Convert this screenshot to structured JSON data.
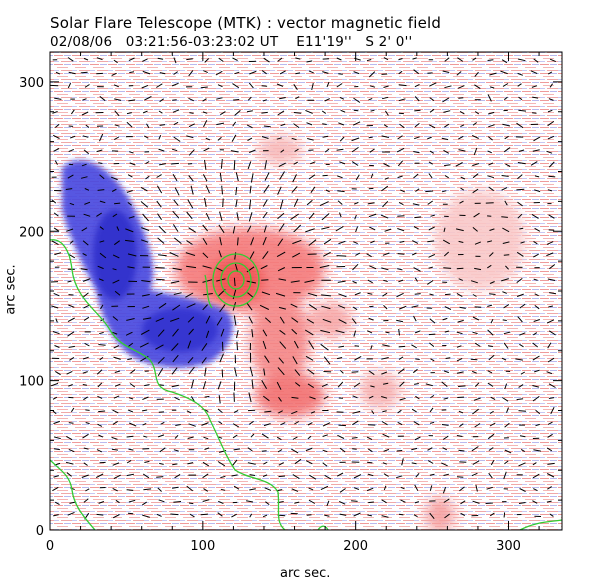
{
  "header": {
    "title": "Solar Flare Telescope (MTK) : vector magnetic field",
    "date": "02/08/06",
    "time_range": "03:21:56-03:23:02 UT",
    "lon": "E11'19''",
    "lat": "S 2' 0''"
  },
  "axes": {
    "xlabel": "arc sec.",
    "ylabel": "arc sec.",
    "xlim": [
      0,
      335
    ],
    "ylim": [
      0,
      320
    ],
    "xticks": [
      0,
      100,
      200,
      300
    ],
    "yticks": [
      0,
      100,
      200,
      300
    ],
    "x_tick_labels": [
      "0",
      "100",
      "200",
      "300"
    ],
    "y_tick_labels": [
      "0",
      "100",
      "200",
      "300"
    ]
  },
  "colors": {
    "positive_polarity": "#f04848",
    "negative_polarity": "#3a3ad8",
    "contour": "#33cc33",
    "vector": "#000000",
    "frame": "#000000"
  }
}
